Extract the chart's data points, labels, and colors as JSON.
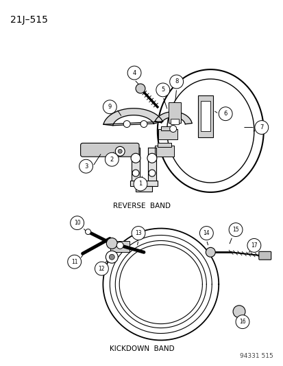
{
  "title": "21J–515",
  "background_color": "#ffffff",
  "line_color": "#000000",
  "text_color": "#000000",
  "reverse_band_label": "REVERSE  BAND",
  "kickdown_band_label": "KICKDOWN  BAND",
  "watermark": "94331 515",
  "fig_w": 4.14,
  "fig_h": 5.33,
  "dpi": 100
}
